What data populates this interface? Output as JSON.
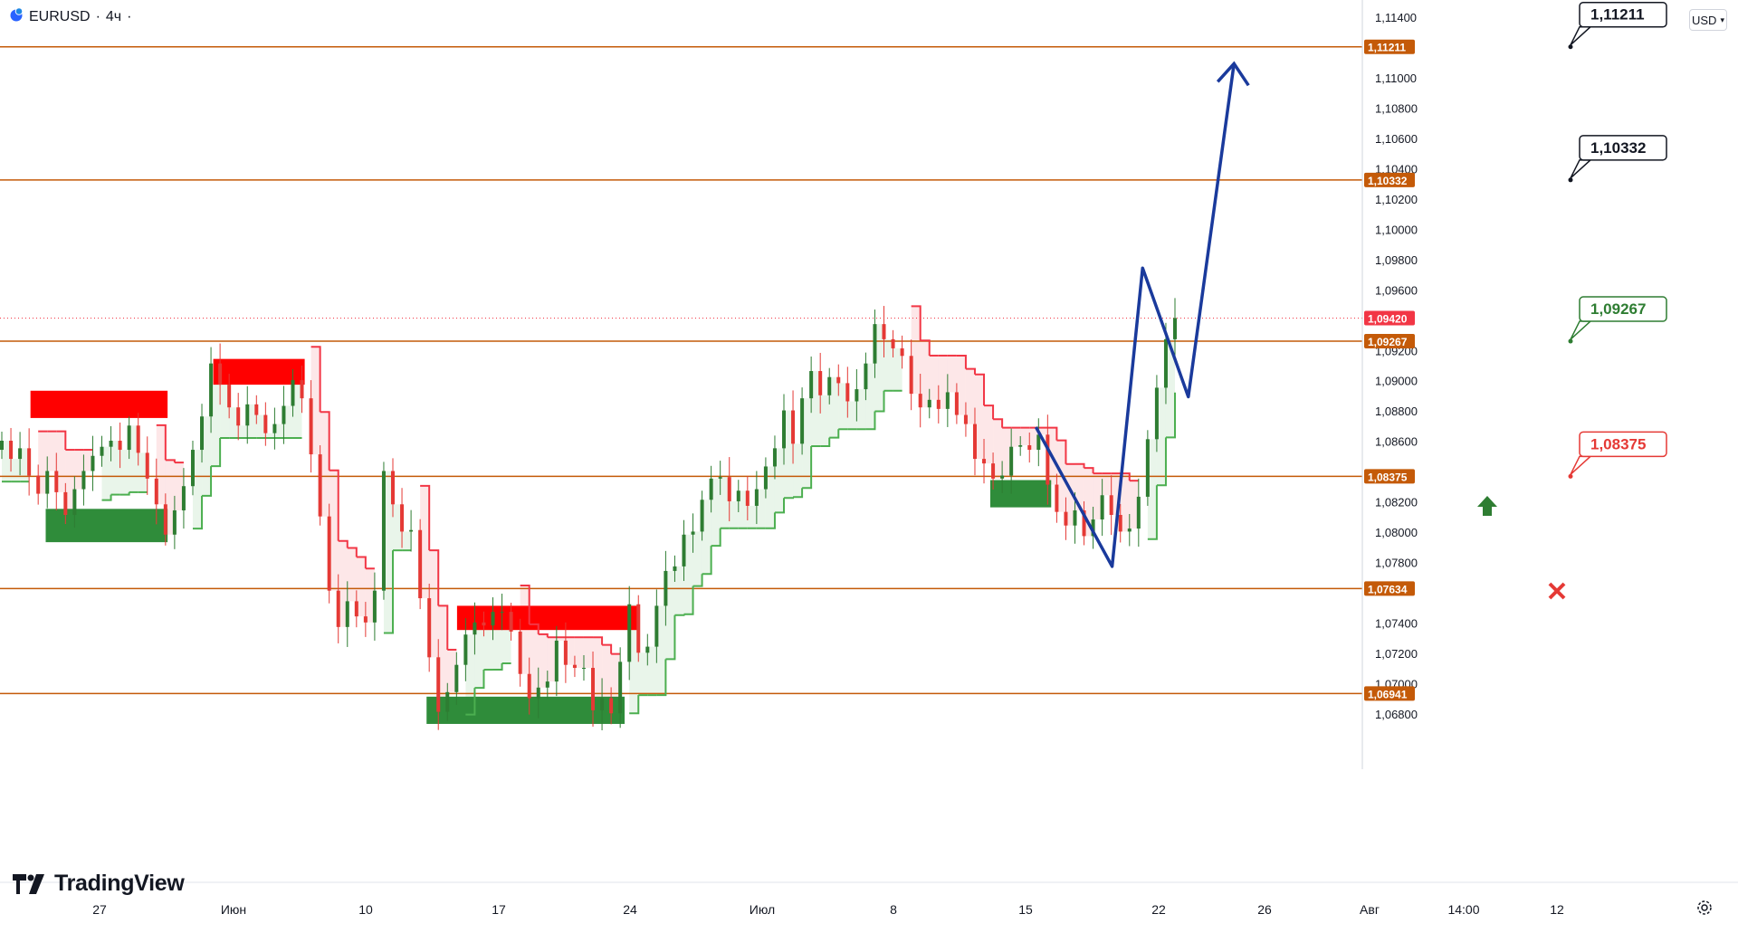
{
  "header": {
    "symbol": "EURUSD",
    "separator": "·",
    "timeframe": "4ч",
    "dot": "·"
  },
  "currency": "USD",
  "watermark": "TradingView",
  "colors": {
    "bull": "#2e7d32",
    "bear": "#e53935",
    "level": "#c45a08",
    "forecast": "#1a3a9c",
    "trail_green": "#4caf50",
    "trail_red": "#f23645"
  },
  "chart_data": {
    "type": "candlestick",
    "symbol": "EURUSD",
    "timeframe": "4ч",
    "ylim": [
      1.0668,
      1.1152
    ],
    "y_ticks": [
      "1,11400",
      "1,11000",
      "1,10800",
      "1,10600",
      "1,10400",
      "1,10200",
      "1,10000",
      "1,09800",
      "1,09600",
      "1,09200",
      "1,09000",
      "1,08800",
      "1,08600",
      "1,08200",
      "1,08000",
      "1,07800",
      "1,07400",
      "1,07200",
      "1,07000",
      "1,06800"
    ],
    "x_ticks": [
      "27",
      "Июн",
      "10",
      "17",
      "24",
      "Июл",
      "8",
      "15",
      "22",
      "26",
      "Авг",
      "14:00",
      "12"
    ],
    "current_price": "1,09420",
    "levels": [
      {
        "value": "1,11211",
        "callout": "1,11211",
        "callout_color": "#131722"
      },
      {
        "value": "1,10332",
        "callout": "1,10332",
        "callout_color": "#131722"
      },
      {
        "value": "1,09267",
        "callout": "1,09267",
        "callout_color": "#2e7d32"
      },
      {
        "value": "1,08375",
        "callout": "1,08375",
        "callout_color": "#e53935"
      },
      {
        "value": "1,07634"
      },
      {
        "value": "1,06941"
      }
    ],
    "zones": [
      {
        "type": "supply",
        "from_date": "05-22",
        "to_date": "05-31",
        "low": 1.0876,
        "high": 1.0894
      },
      {
        "type": "demand",
        "from_date": "05-23",
        "to_date": "05-31",
        "low": 1.0794,
        "high": 1.0816
      },
      {
        "type": "supply",
        "from_date": "06-03",
        "to_date": "06-09",
        "low": 1.0898,
        "high": 1.0915
      },
      {
        "type": "supply",
        "from_date": "06-19",
        "to_date": "07-01",
        "low": 1.0736,
        "high": 1.0752
      },
      {
        "type": "demand",
        "from_date": "06-17",
        "to_date": "06-30",
        "low": 1.0674,
        "high": 1.0692
      },
      {
        "type": "demand",
        "from_date": "07-24",
        "to_date": "07-28",
        "low": 1.0817,
        "high": 1.0835
      }
    ],
    "forecast_path": [
      {
        "date": "07-27",
        "price": 1.087
      },
      {
        "date": "08-01",
        "price": 1.0778
      },
      {
        "date": "08-03",
        "price": 1.0975
      },
      {
        "date": "08-06",
        "price": 1.089
      },
      {
        "date": "08-09",
        "price": 1.111
      }
    ],
    "closes": [
      1.0861,
      1.0849,
      1.0856,
      1.0838,
      1.0826,
      1.0841,
      1.0827,
      1.0812,
      1.0829,
      1.0841,
      1.0851,
      1.0857,
      1.0861,
      1.0855,
      1.0871,
      1.0853,
      1.0836,
      1.0819,
      1.0799,
      1.0815,
      1.0831,
      1.0855,
      1.0877,
      1.0912,
      1.0898,
      1.0883,
      1.0871,
      1.0885,
      1.0878,
      1.0866,
      1.0872,
      1.0884,
      1.0901,
      1.0889,
      1.0852,
      1.0811,
      1.0762,
      1.0738,
      1.0755,
      1.0745,
      1.0741,
      1.0762,
      1.0841,
      1.0819,
      1.0801,
      1.0802,
      1.0757,
      1.0718,
      1.0682,
      1.0695,
      1.0713,
      1.0733,
      1.0741,
      1.0739,
      1.0748,
      1.0748,
      1.0735,
      1.0707,
      1.0691,
      1.0698,
      1.0702,
      1.0729,
      1.0713,
      1.0711,
      1.0711,
      1.0683,
      1.0691,
      1.0681,
      1.0715,
      1.0753,
      1.0721,
      1.0725,
      1.0752,
      1.0775,
      1.0778,
      1.0799,
      1.0801,
      1.0822,
      1.0836,
      1.0837,
      1.0821,
      1.0828,
      1.0818,
      1.0829,
      1.0844,
      1.0856,
      1.0881,
      1.0859,
      1.0889,
      1.0907,
      1.0891,
      1.0903,
      1.0899,
      1.0887,
      1.0895,
      1.0912,
      1.0938,
      1.0928,
      1.0922,
      1.0917,
      1.0892,
      1.0883,
      1.0888,
      1.0882,
      1.0893,
      1.0878,
      1.0872,
      1.0849,
      1.0846,
      1.0836,
      1.0838,
      1.0857,
      1.0858,
      1.0855,
      1.0865,
      1.0832,
      1.0814,
      1.0805,
      1.0815,
      1.0798,
      1.0809,
      1.0825,
      1.0812,
      1.0801,
      1.0803,
      1.0824,
      1.0862,
      1.0896,
      1.0928,
      1.0942
    ]
  }
}
